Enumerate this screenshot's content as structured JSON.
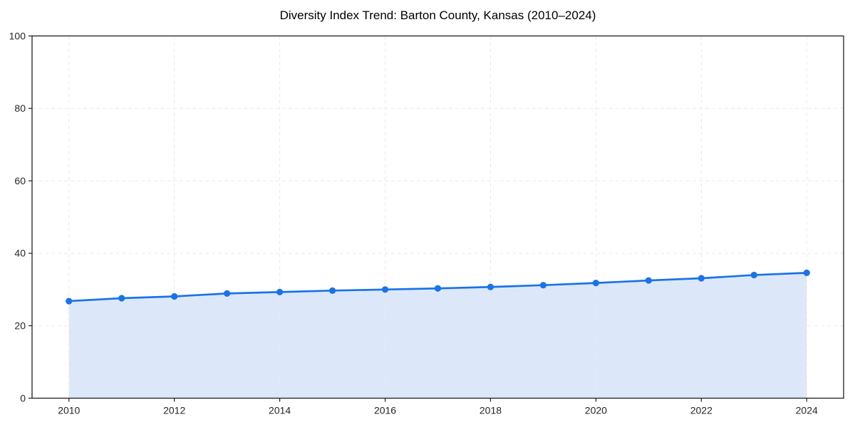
{
  "figure": {
    "background": "#ffffff"
  },
  "chart_data": {
    "type": "line",
    "title": "Diversity Index Trend: Barton County, Kansas (2010–2024)",
    "xlabel": "",
    "ylabel": "",
    "x": [
      2010,
      2011,
      2012,
      2013,
      2014,
      2015,
      2016,
      2017,
      2018,
      2019,
      2020,
      2021,
      2022,
      2023,
      2024
    ],
    "series": [
      {
        "name": "Diversity Index",
        "values": [
          26.8,
          27.6,
          28.1,
          28.9,
          29.3,
          29.7,
          30.0,
          30.3,
          30.7,
          31.2,
          31.8,
          32.5,
          33.1,
          34.0,
          34.6
        ]
      }
    ],
    "xlim": [
      2009.3,
      2024.7
    ],
    "ylim": [
      0,
      100
    ],
    "xticks": [
      2010,
      2012,
      2014,
      2016,
      2018,
      2020,
      2022,
      2024
    ],
    "yticks": [
      0,
      20,
      40,
      60,
      80,
      100
    ],
    "grid": true,
    "grid_style": "dashed",
    "legend": "none",
    "marker": "circle",
    "area_fill": true,
    "colors": {
      "line": "#1a73e8",
      "marker": "#1a73e8",
      "area": "#dce8f9",
      "grid": "#e9e9e9",
      "spine": "#1f1f1f",
      "tick_label": "#262626",
      "title": "#000000",
      "background": "#ffffff"
    }
  }
}
